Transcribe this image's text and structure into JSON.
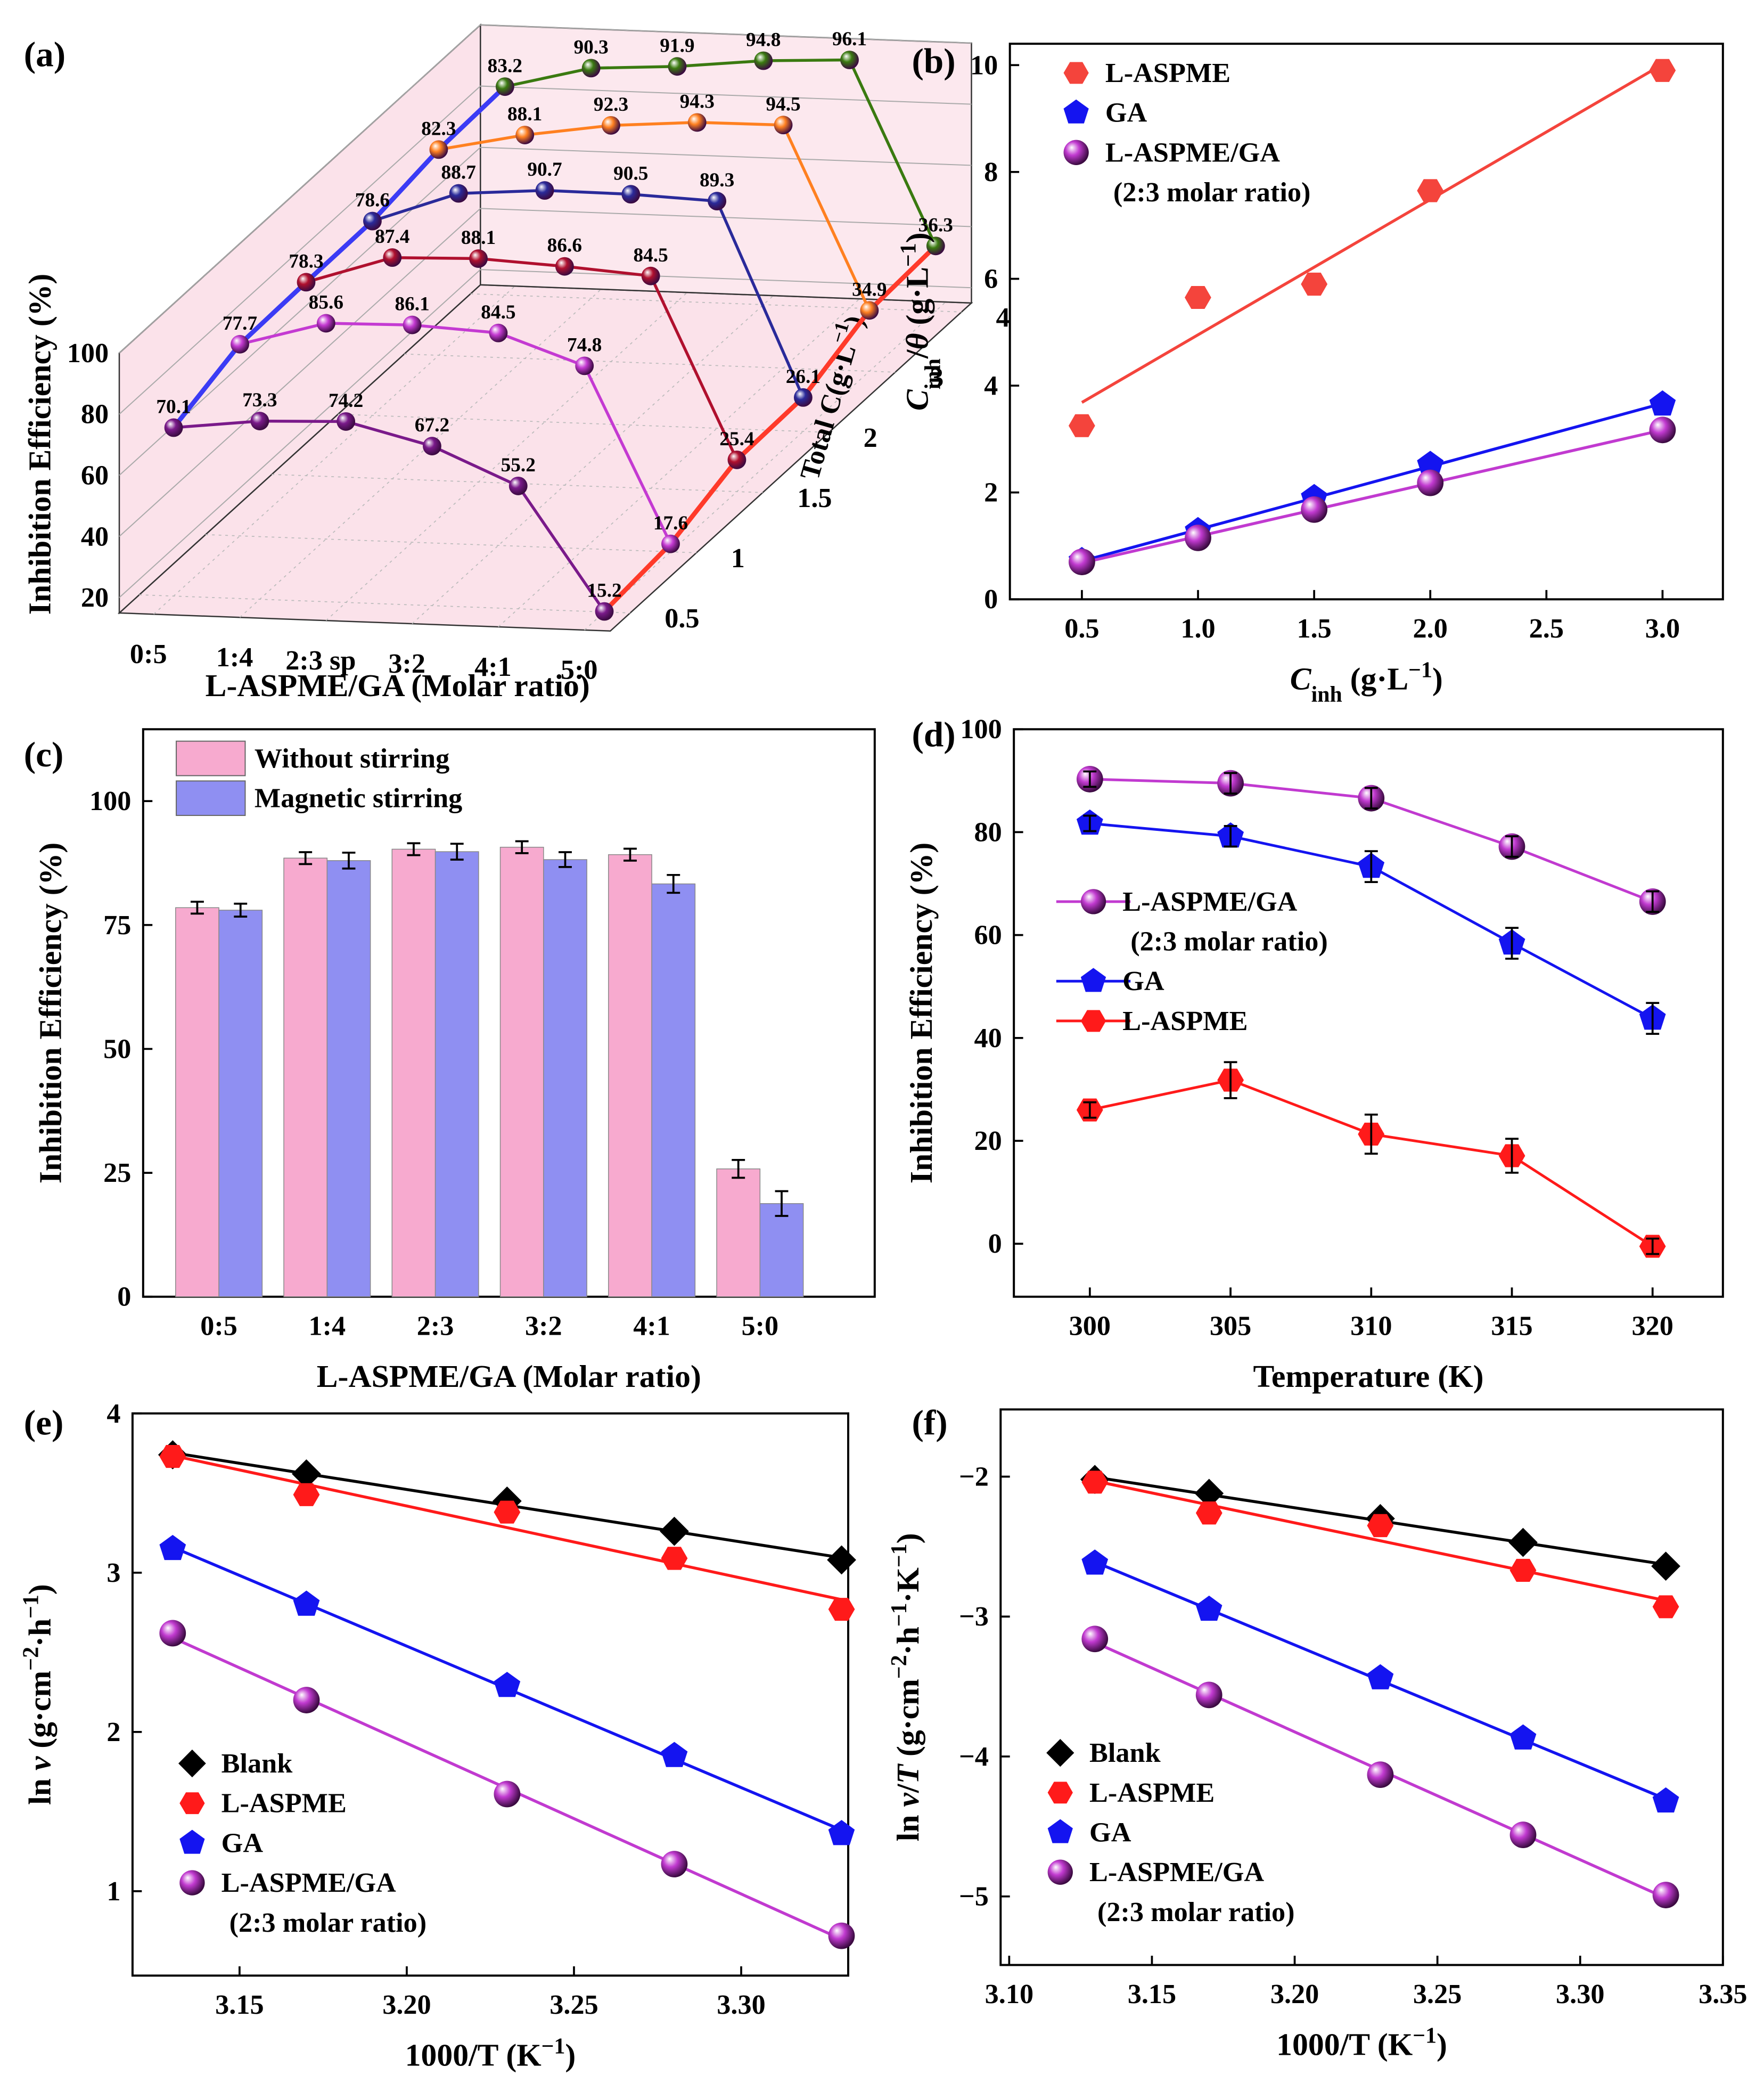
{
  "chart_data": [
    {
      "type": "line3d",
      "panel": "(a)",
      "categories": [
        "0:5",
        "1:4",
        "2:3 sp",
        "3:2",
        "4:1",
        "5:0"
      ],
      "depth": [
        0.5,
        1,
        1.5,
        2,
        3,
        4
      ],
      "xlabel": [
        {
          "text": "L-ASPME/GA (Molar ratio)"
        }
      ],
      "ylabel": [
        {
          "text": "Inhibition Efficiency (%)"
        }
      ],
      "zlabel": [
        {
          "text": "Total C"
        },
        {
          "text": "(g·L"
        },
        {
          "text": "−1",
          "style": "sup"
        },
        {
          "text": ")"
        }
      ],
      "ylim": [
        15,
        100
      ],
      "yticks": [
        20,
        40,
        60,
        80,
        100
      ],
      "wall_color": "#fbe2ea",
      "depth_line_colors": [
        "#3b3bf5",
        "#ff3a2a"
      ],
      "series": [
        {
          "color": "#7a1a8a",
          "values": [
            70.1,
            73.3,
            74.2,
            67.2,
            55.2,
            15.2
          ]
        },
        {
          "color": "#c43ad2",
          "values": [
            77.7,
            85.6,
            86.1,
            84.5,
            74.8,
            17.6
          ]
        },
        {
          "color": "#b0102e",
          "values": [
            78.3,
            87.4,
            88.1,
            86.6,
            84.5,
            25.4
          ]
        },
        {
          "color": "#2a2a9a",
          "values": [
            78.6,
            88.7,
            90.7,
            90.5,
            89.3,
            26.1
          ]
        },
        {
          "color": "#ff8020",
          "values": [
            82.3,
            88.1,
            92.3,
            94.3,
            94.5,
            34.9
          ]
        },
        {
          "color": "#3a7a10",
          "values": [
            83.2,
            90.3,
            91.9,
            94.8,
            96.1,
            36.3
          ]
        }
      ]
    },
    {
      "type": "scatter",
      "panel": "(b)",
      "fit": true,
      "legend": "upper left",
      "x": [
        0.5,
        1,
        1.5,
        2,
        3
      ],
      "xlim": [
        0.19,
        3.26
      ],
      "ylim": [
        0,
        10.4
      ],
      "xticks": [
        0.5,
        {
          "value": 1,
          "label": "1.0"
        },
        1.5,
        {
          "value": 2,
          "label": "2.0"
        },
        2.5,
        {
          "value": 3,
          "label": "3.0"
        }
      ],
      "yticks": [
        0,
        2,
        4,
        6,
        8,
        10
      ],
      "xlabel": [
        {
          "text": "C",
          "style": "italic"
        },
        {
          "text": "inh",
          "style": "sub"
        },
        {
          "text": " (g·L"
        },
        {
          "text": "−1",
          "style": "sup"
        },
        {
          "text": ")"
        }
      ],
      "ylabel": [
        {
          "text": "C",
          "style": "italic"
        },
        {
          "text": "inh",
          "style": "sub"
        },
        {
          "text": "/"
        },
        {
          "text": "θ",
          "style": "italic"
        },
        {
          "text": " (g·L"
        },
        {
          "text": "−1",
          "style": "sup"
        },
        {
          "text": ")"
        }
      ],
      "series": [
        {
          "name": "L-ASPME",
          "color": "#f4443c",
          "marker": "hexagon",
          "values": [
            3.25,
            5.65,
            5.9,
            7.65,
            9.9
          ]
        },
        {
          "name": "GA",
          "color": "#1414f0",
          "marker": "pentagon",
          "values": [
            0.72,
            1.28,
            1.9,
            2.52,
            3.65
          ]
        },
        {
          "name": "L-ASPME/GA (2:3 molar ratio)",
          "color": "#c13ad0",
          "marker": "sphere",
          "values": [
            0.7,
            1.15,
            1.68,
            2.18,
            3.17
          ]
        }
      ]
    },
    {
      "type": "bar",
      "panel": "(c)",
      "legend": "upper left",
      "categories": [
        "0:5",
        "1:4",
        "2:3",
        "3:2",
        "4:1",
        "5:0"
      ],
      "ylim": [
        0,
        114.5
      ],
      "yticks": [
        0,
        25,
        50,
        75,
        100
      ],
      "xlabel": [
        {
          "text": "L-ASPME/GA (Molar ratio)"
        }
      ],
      "ylabel": [
        {
          "text": "Inhibition Efficiency (%)"
        }
      ],
      "series": [
        {
          "name": "Without stirring",
          "color": "#f7aacf",
          "values": [
            78.5,
            88.5,
            90.3,
            90.7,
            89.2,
            25.8
          ],
          "errors": [
            1.2,
            1.2,
            1.2,
            1.2,
            1.2,
            1.8
          ]
        },
        {
          "name": "Magnetic stirring",
          "color": "#8f8ff2",
          "values": [
            78.0,
            88.0,
            89.8,
            88.2,
            83.3,
            18.8
          ],
          "errors": [
            1.3,
            1.6,
            1.6,
            1.5,
            1.8,
            2.5
          ]
        }
      ]
    },
    {
      "type": "line",
      "panel": "(d)",
      "legend": "center left",
      "x": [
        300,
        305,
        310,
        315,
        320
      ],
      "xlim": [
        297.3,
        322.5
      ],
      "ylim": [
        -10.3,
        100
      ],
      "xticks": [
        300,
        305,
        310,
        315,
        320
      ],
      "yticks": [
        0,
        20,
        40,
        60,
        80,
        100
      ],
      "xlabel": [
        {
          "text": "Temperature (K)"
        }
      ],
      "ylabel": [
        {
          "text": "Inhibition Efficiency (%)"
        }
      ],
      "series": [
        {
          "name": "L-ASPME/GA (2:3 molar ratio)",
          "color": "#c13ad0",
          "marker": "sphere",
          "values": [
            90.3,
            89.5,
            86.6,
            77.2,
            66.5
          ],
          "errors": [
            1.5,
            2,
            2,
            2,
            2
          ]
        },
        {
          "name": "GA",
          "color": "#1414f0",
          "marker": "pentagon",
          "values": [
            81.7,
            79.2,
            73.3,
            58.4,
            43.8
          ],
          "errors": [
            1.5,
            2,
            3,
            3,
            3
          ]
        },
        {
          "name": "L-ASPME",
          "color": "#ff1a1a",
          "marker": "hexagon",
          "values": [
            26,
            31.8,
            21.3,
            17.1,
            -0.5
          ],
          "errors": [
            1.5,
            3.5,
            3.8,
            3.3,
            1.5
          ]
        }
      ]
    },
    {
      "type": "scatter",
      "panel": "(e)",
      "fit": true,
      "legend": "lower left",
      "x": [
        3.13,
        3.17,
        3.23,
        3.28,
        3.33
      ],
      "xlim": [
        3.118,
        3.332
      ],
      "ylim": [
        0.47,
        4
      ],
      "xticks": [
        3.15,
        {
          "value": 3.2,
          "label": "3.20"
        },
        3.25,
        {
          "value": 3.3,
          "label": "3.30"
        }
      ],
      "yticks": [
        1,
        2,
        3,
        4
      ],
      "xlabel": [
        {
          "text": "1000/T (K"
        },
        {
          "text": "−1",
          "style": "sup"
        },
        {
          "text": ")"
        }
      ],
      "ylabel": [
        {
          "text": "ln "
        },
        {
          "text": "v",
          "style": "italic"
        },
        {
          "text": " (g·cm"
        },
        {
          "text": "−2",
          "style": "sup"
        },
        {
          "text": "·h"
        },
        {
          "text": "−1",
          "style": "sup"
        },
        {
          "text": ")"
        }
      ],
      "series": [
        {
          "name": "Blank",
          "color": "#000000",
          "marker": "diamond",
          "values": [
            3.74,
            3.62,
            3.45,
            3.26,
            3.08
          ]
        },
        {
          "name": "L-ASPME",
          "color": "#ff1a1a",
          "marker": "hexagon",
          "values": [
            3.73,
            3.49,
            3.38,
            3.09,
            2.77
          ]
        },
        {
          "name": "GA",
          "color": "#1414f0",
          "marker": "pentagon",
          "values": [
            3.15,
            2.8,
            2.29,
            1.85,
            1.36
          ]
        },
        {
          "name": "L-ASPME/GA (2:3 molar ratio)",
          "color": "#c13ad0",
          "marker": "sphere",
          "values": [
            2.62,
            2.2,
            1.61,
            1.17,
            0.72
          ]
        }
      ]
    },
    {
      "type": "scatter",
      "panel": "(f)",
      "fit": true,
      "legend": "lower left",
      "x": [
        3.13,
        3.17,
        3.23,
        3.28,
        3.33
      ],
      "xlim": [
        3.097,
        3.35
      ],
      "ylim": [
        -5.49,
        -1.52
      ],
      "xticks": [
        {
          "value": 3.1,
          "label": "3.10"
        },
        3.15,
        {
          "value": 3.2,
          "label": "3.20"
        },
        3.25,
        {
          "value": 3.3,
          "label": "3.30"
        },
        3.35
      ],
      "yticks": [
        {
          "value": -2,
          "label": "−2"
        },
        {
          "value": -3,
          "label": "−3"
        },
        {
          "value": -4,
          "label": "−4"
        },
        {
          "value": -5,
          "label": "−5"
        }
      ],
      "xlabel": [
        {
          "text": "1000/T (K"
        },
        {
          "text": "−1",
          "style": "sup"
        },
        {
          "text": ")"
        }
      ],
      "ylabel": [
        {
          "text": "ln "
        },
        {
          "text": "v",
          "style": "italic"
        },
        {
          "text": "/"
        },
        {
          "text": "T",
          "style": "italic"
        },
        {
          "text": " (g·cm"
        },
        {
          "text": "−2",
          "style": "sup"
        },
        {
          "text": "·h"
        },
        {
          "text": "−1",
          "style": "sup"
        },
        {
          "text": "·K"
        },
        {
          "text": "−1",
          "style": "sup"
        },
        {
          "text": ")"
        }
      ],
      "series": [
        {
          "name": "Blank",
          "color": "#000000",
          "marker": "diamond",
          "values": [
            -2.02,
            -2.12,
            -2.3,
            -2.47,
            -2.64
          ]
        },
        {
          "name": "L-ASPME",
          "color": "#ff1a1a",
          "marker": "hexagon",
          "values": [
            -2.04,
            -2.26,
            -2.35,
            -2.67,
            -2.93
          ]
        },
        {
          "name": "GA",
          "color": "#1414f0",
          "marker": "pentagon",
          "values": [
            -2.62,
            -2.95,
            -3.44,
            -3.87,
            -4.32
          ]
        },
        {
          "name": "L-ASPME/GA (2:3 molar ratio)",
          "color": "#c13ad0",
          "marker": "sphere",
          "values": [
            -3.16,
            -3.56,
            -4.13,
            -4.56,
            -4.99
          ]
        }
      ]
    }
  ]
}
